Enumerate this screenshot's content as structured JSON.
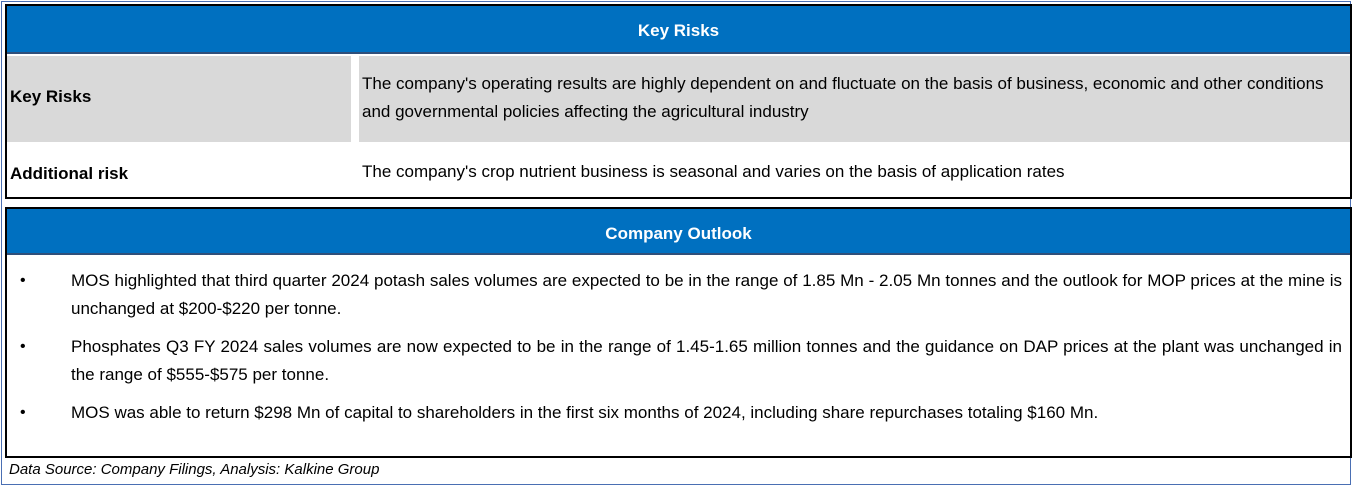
{
  "key_risks": {
    "header": "Key Risks",
    "rows": [
      {
        "label": "Key Risks",
        "text": "The company's operating results are highly dependent on and fluctuate on the basis of business, economic and other conditions and governmental policies affecting the agricultural industry"
      },
      {
        "label": "Additional risk",
        "text": "The company's crop nutrient business is seasonal and varies on the basis of application rates"
      }
    ]
  },
  "company_outlook": {
    "header": "Company Outlook",
    "bullets": [
      "MOS highlighted that third quarter 2024 potash sales volumes are expected to be in the range of 1.85 Mn - 2.05 Mn tonnes and the outlook for MOP prices at the mine is unchanged at $200-$220 per tonne.",
      "Phosphates Q3 FY 2024 sales volumes are now expected to be in the range of 1.45-1.65 million tonnes and the guidance on DAP prices at the plant was unchanged in the range of $555-$575 per tonne.",
      "MOS was able to return $298 Mn of capital to shareholders in the first six months of 2024, including share repurchases totaling $160 Mn."
    ],
    "bullet_symbol": "•"
  },
  "footer": {
    "source": "Data Source: Company Filings, Analysis: Kalkine Group"
  },
  "colors": {
    "header_bg": "#0070c0",
    "shaded_row": "#d9d9d9"
  }
}
